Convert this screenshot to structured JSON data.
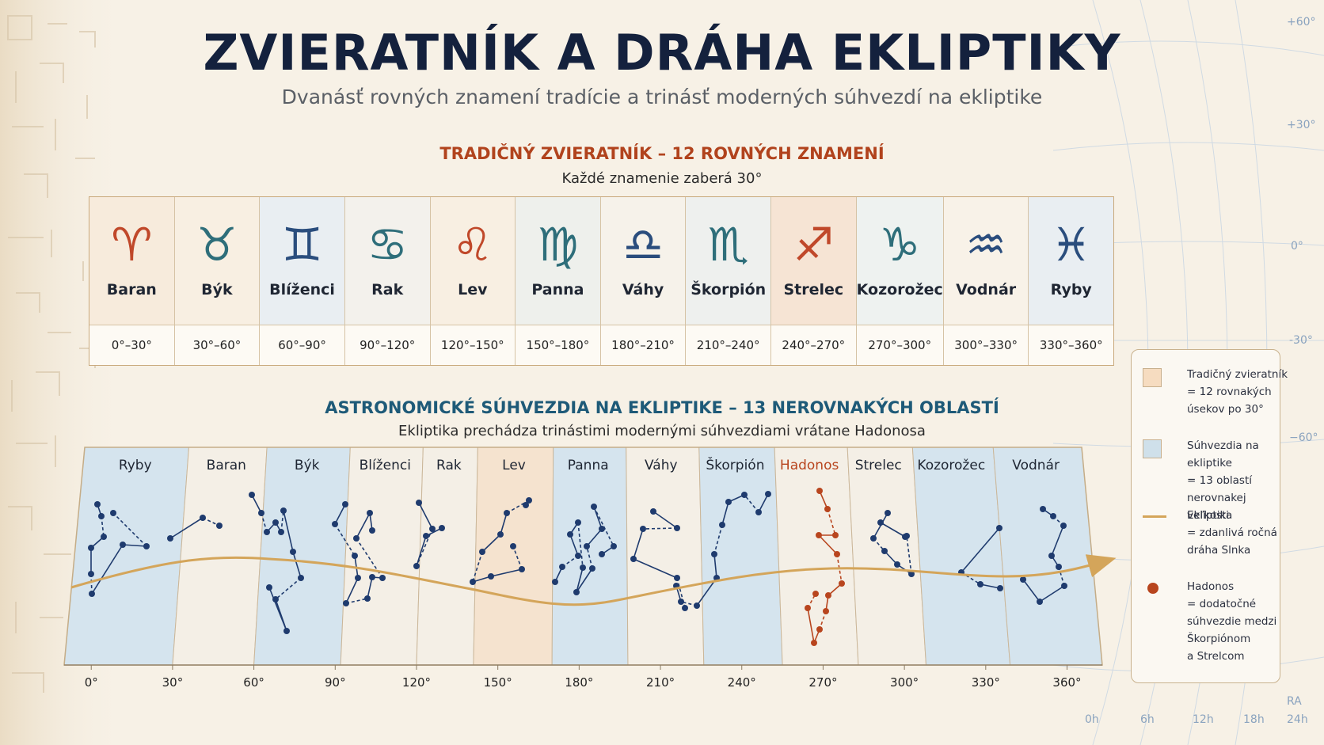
{
  "title": "ZVIERATNÍK A DRÁHA EKLIPTIKY",
  "subtitle": "Dvanásť rovných znamení tradície a trinásť moderných súhvezdí na ekliptike",
  "traditional": {
    "heading": "TRADIČNÝ ZVIERATNÍK – 12 ROVNÝCH ZNAMENÍ",
    "subheading": "Každé znamenie zaberá 30°",
    "signs": [
      {
        "symbol": "♈",
        "name": "Baran",
        "range": "0°–30°",
        "color": "#c0482a",
        "bg": "#f7ebdc"
      },
      {
        "symbol": "♉",
        "name": "Býk",
        "range": "30°–60°",
        "color": "#2e6e7a",
        "bg": "#f8efe2"
      },
      {
        "symbol": "♊",
        "name": "Blíženci",
        "range": "60°–90°",
        "color": "#2a4d7d",
        "bg": "#e9eef2"
      },
      {
        "symbol": "♋",
        "name": "Rak",
        "range": "90°–120°",
        "color": "#2e6e7a",
        "bg": "#f3f1ec"
      },
      {
        "symbol": "♌",
        "name": "Lev",
        "range": "120°–150°",
        "color": "#c0482a",
        "bg": "#f8efe2"
      },
      {
        "symbol": "♍",
        "name": "Panna",
        "range": "150°–180°",
        "color": "#2e6e7a",
        "bg": "#eef0ec"
      },
      {
        "symbol": "♎",
        "name": "Váhy",
        "range": "180°–210°",
        "color": "#2a4d7d",
        "bg": "#f6f2ea"
      },
      {
        "symbol": "♏",
        "name": "Škorpión",
        "range": "210°–240°",
        "color": "#2e6e7a",
        "bg": "#eef0ee"
      },
      {
        "symbol": "♐",
        "name": "Strelec",
        "range": "240°–270°",
        "color": "#c0482a",
        "bg": "#f6e4d4"
      },
      {
        "symbol": "♑",
        "name": "Kozorožec",
        "range": "270°–300°",
        "color": "#2e6e7a",
        "bg": "#eef2f0"
      },
      {
        "symbol": "♒",
        "name": "Vodnár",
        "range": "300°–330°",
        "color": "#2a4d7d",
        "bg": "#f8f2e8"
      },
      {
        "symbol": "♓",
        "name": "Ryby",
        "range": "330°–360°",
        "color": "#2a4d7d",
        "bg": "#e9eef2"
      }
    ]
  },
  "astronomical": {
    "heading": "ASTRONOMICKÉ SÚHVEZDIA NA EKLIPTIKE – 13 NEROVNAKÝCH OBLASTÍ",
    "subheading": "Ekliptika prechádza trinástimi modernými súhvezdiami vrátane Hadonosa",
    "constellations": [
      {
        "name": "Ryby",
        "start": -10,
        "end": 30,
        "tint": "blue"
      },
      {
        "name": "Baran",
        "start": 30,
        "end": 60,
        "tint": "cream"
      },
      {
        "name": "Býk",
        "start": 60,
        "end": 92,
        "tint": "blue"
      },
      {
        "name": "Blíženci",
        "start": 92,
        "end": 120,
        "tint": "cream"
      },
      {
        "name": "Rak",
        "start": 120,
        "end": 141,
        "tint": "cream"
      },
      {
        "name": "Lev",
        "start": 141,
        "end": 170,
        "tint": "peach"
      },
      {
        "name": "Panna",
        "start": 170,
        "end": 198,
        "tint": "blue"
      },
      {
        "name": "Váhy",
        "start": 198,
        "end": 226,
        "tint": "cream"
      },
      {
        "name": "Škorpión",
        "start": 226,
        "end": 255,
        "tint": "blue"
      },
      {
        "name": "Hadonos",
        "start": 255,
        "end": 283,
        "tint": "cream",
        "highlight": true
      },
      {
        "name": "Strelec",
        "start": 283,
        "end": 308,
        "tint": "cream"
      },
      {
        "name": "Kozorožec",
        "start": 308,
        "end": 339,
        "tint": "blue"
      },
      {
        "name": "Vodnár",
        "start": 339,
        "end": 373,
        "tint": "blue"
      }
    ],
    "axis_ticks": [
      "0°",
      "30°",
      "60°",
      "90°",
      "120°",
      "150°",
      "180°",
      "210°",
      "240°",
      "270°",
      "300°",
      "330°",
      "360°"
    ]
  },
  "legend": {
    "items": [
      {
        "type": "square",
        "color": "#f6dcc0",
        "lines": [
          "Tradičný zvieratník",
          "= 12 rovnakých",
          "úsekov po 30°"
        ]
      },
      {
        "type": "square",
        "color": "#cfe0ea",
        "lines": [
          "Súhvezdia na ekliptike",
          "= 13 oblastí",
          "nerovnakej veľkosti"
        ]
      },
      {
        "type": "line",
        "color": "#d4a55a",
        "lines": [
          "Ekliptika",
          "= zdanlivá ročná",
          "dráha Slnka"
        ]
      },
      {
        "type": "dot",
        "color": "#b8451e",
        "lines": [
          "Hadonos",
          "= dodatočné",
          "súhvezdie medzi",
          "Škorpiónom",
          "a Strelcom"
        ]
      }
    ]
  },
  "background_axes": {
    "dec_labels": [
      "+60°",
      "+30°",
      "0°",
      "-30°",
      "−60°"
    ],
    "ra_title": "RA",
    "ra_labels": [
      "0h",
      "6h",
      "12h",
      "18h",
      "24h"
    ]
  },
  "colors": {
    "title": "#14213d",
    "accent_red": "#b1431d",
    "accent_blue": "#1e5a78",
    "ecliptic": "#d4a55a",
    "star": "#1f3b6e",
    "ophiuchus": "#b8451e"
  }
}
